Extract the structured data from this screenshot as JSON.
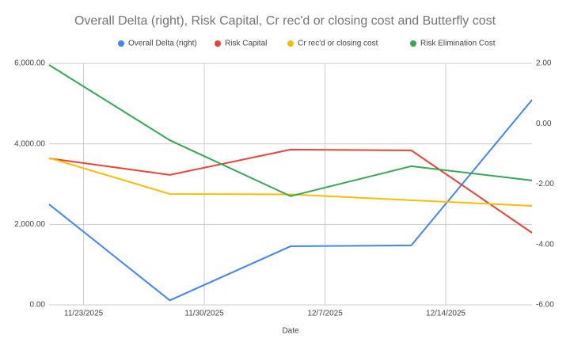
{
  "chart_data": {
    "type": "line",
    "title": "Overall Delta (right), Risk Capital, Cr rec'd or closing cost and Butterfly cost",
    "x_label": "Date",
    "x": [
      "2025-11-21",
      "2025-11-28",
      "2025-12-05",
      "2025-12-12",
      "2025-12-19"
    ],
    "xlim": [
      "2025-11-21",
      "2025-12-19"
    ],
    "xticks": [
      {
        "value": "2025-11-23",
        "label": "11/23/2025"
      },
      {
        "value": "2025-11-30",
        "label": "11/30/2025"
      },
      {
        "value": "2025-12-07",
        "label": "12/7/2025"
      },
      {
        "value": "2025-12-14",
        "label": "12/14/2025"
      }
    ],
    "ylim": [
      0,
      6000
    ],
    "yticks": [
      {
        "value": 0,
        "label": "0.00"
      },
      {
        "value": 2000,
        "label": "2,000.00"
      },
      {
        "value": 4000,
        "label": "4,000.00"
      },
      {
        "value": 6000,
        "label": "6,000.00"
      }
    ],
    "y2lim": [
      -6,
      2
    ],
    "y2ticks": [
      {
        "value": -6,
        "label": "-6.00"
      },
      {
        "value": -4,
        "label": "-4.00"
      },
      {
        "value": -2,
        "label": "-2.00"
      },
      {
        "value": 0,
        "label": "0.00"
      },
      {
        "value": 2,
        "label": "2.00"
      }
    ],
    "grid": true,
    "legend": "top",
    "series": [
      {
        "name": "Overall Delta (right)",
        "color": "#4285f4",
        "axis": "y2",
        "values": [
          -2.67,
          -5.85,
          -4.06,
          -4.03,
          0.79
        ]
      },
      {
        "name": "Risk Capital",
        "color": "#ea4335",
        "values": [
          3640,
          3228,
          3858,
          3838,
          1790
        ]
      },
      {
        "name": "Cr rec'd or closing cost",
        "color": "#fbbc04",
        "values": [
          3650,
          2755,
          2745,
          2600,
          2460
        ]
      },
      {
        "name": "Risk Elimination Cost",
        "color": "#34a853",
        "values": [
          5960,
          4090,
          2700,
          3445,
          3090
        ]
      }
    ]
  }
}
